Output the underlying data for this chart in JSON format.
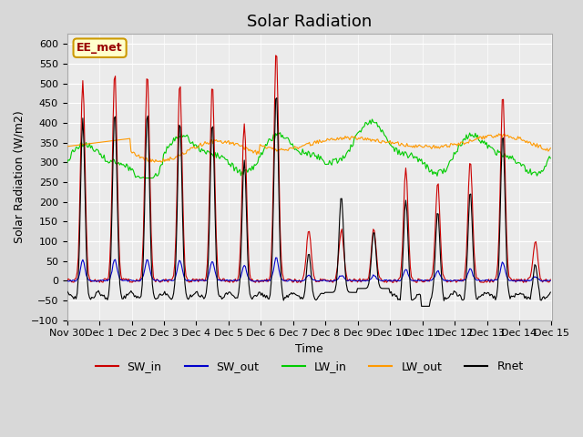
{
  "title": "Solar Radiation",
  "ylabel": "Solar Radiation (W/m2)",
  "xlabel": "Time",
  "ylim": [
    -100,
    625
  ],
  "yticks": [
    -100,
    -50,
    0,
    50,
    100,
    150,
    200,
    250,
    300,
    350,
    400,
    450,
    500,
    550,
    600
  ],
  "colors": {
    "SW_in": "#cc0000",
    "SW_out": "#0000cc",
    "LW_in": "#00cc00",
    "LW_out": "#ff9900",
    "Rnet": "#000000"
  },
  "annotation_text": "EE_met",
  "annotation_bg": "#ffffcc",
  "annotation_border": "#cc9900",
  "title_fontsize": 13,
  "legend_fontsize": 9,
  "tick_fontsize": 8
}
